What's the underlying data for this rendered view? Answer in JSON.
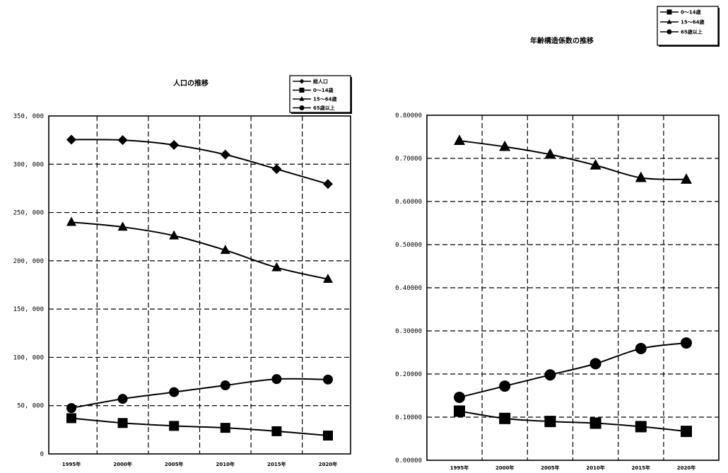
{
  "chart_data": [
    {
      "type": "line",
      "title": "人口の推移",
      "categories": [
        "1995年",
        "2000年",
        "2005年",
        "2010年",
        "2015年",
        "2020年"
      ],
      "y_tick_labels": [
        "0",
        "50, 000",
        "100, 000",
        "150, 000",
        "200, 000",
        "250, 000",
        "300, 000",
        "350, 000"
      ],
      "ylim": [
        0,
        350000
      ],
      "grid": true,
      "legend_position": "top-right",
      "series": [
        {
          "name": "総人口",
          "marker": "diamond",
          "values": [
            325500,
            325000,
            320000,
            310000,
            295000,
            279500
          ]
        },
        {
          "name": "0〜14歳",
          "marker": "square",
          "values": [
            37000,
            32000,
            29000,
            27000,
            23500,
            19000
          ]
        },
        {
          "name": "15〜64歳",
          "marker": "triangle",
          "values": [
            240000,
            235000,
            226000,
            211000,
            193000,
            181000
          ]
        },
        {
          "name": "65歳以上",
          "marker": "circle",
          "values": [
            47500,
            57000,
            64000,
            71000,
            77500,
            77000
          ]
        }
      ]
    },
    {
      "type": "line",
      "title": "年齢構造係数の推移",
      "categories": [
        "1995年",
        "2000年",
        "2005年",
        "2010年",
        "2015年",
        "2020年"
      ],
      "y_tick_labels": [
        "0.00000",
        "0.10000",
        "0.20000",
        "0.30000",
        "0.40000",
        "0.50000",
        "0.60000",
        "0.70000",
        "0.80000"
      ],
      "ylim": [
        0,
        0.8
      ],
      "grid": true,
      "legend_position": "top-right",
      "series": [
        {
          "name": "0〜14歳",
          "marker": "square",
          "values": [
            0.114,
            0.097,
            0.09,
            0.086,
            0.078,
            0.067
          ]
        },
        {
          "name": "15〜64歳",
          "marker": "triangle",
          "values": [
            0.741,
            0.727,
            0.709,
            0.684,
            0.655,
            0.651
          ]
        },
        {
          "name": "65歳以上",
          "marker": "circle",
          "values": [
            0.146,
            0.172,
            0.198,
            0.224,
            0.259,
            0.272
          ]
        }
      ]
    }
  ]
}
